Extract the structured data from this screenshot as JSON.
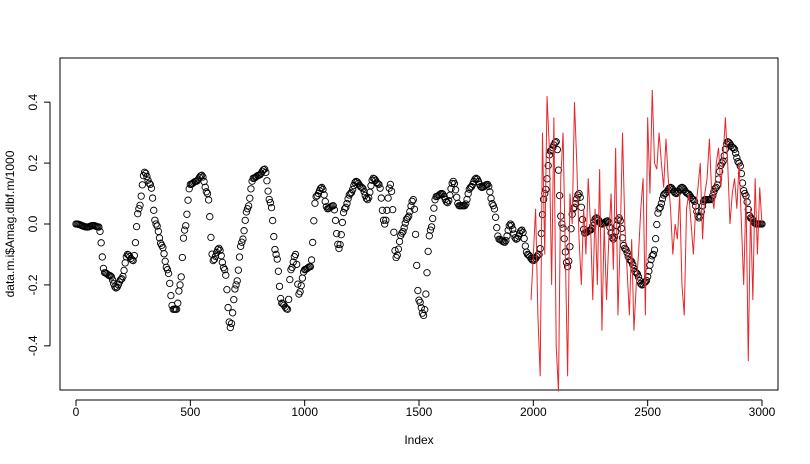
{
  "chart_data": {
    "type": "scatter",
    "xlabel": "Index",
    "ylabel": "data.m.i$Amag.dlbf.m/1000",
    "xlim": [
      -70,
      3070
    ],
    "ylim": [
      -0.545,
      0.545
    ],
    "x_ticks": [
      0,
      500,
      1000,
      1500,
      2000,
      2500,
      3000
    ],
    "y_ticks": [
      -0.4,
      -0.2,
      0.0,
      0.2,
      0.4
    ],
    "x_tick_labels": [
      "0",
      "500",
      "1000",
      "1500",
      "2000",
      "2500",
      "3000"
    ],
    "y_tick_labels": [
      "-0.4",
      "-0.2",
      "0.0",
      "0.2",
      "0.4"
    ],
    "series": [
      {
        "style": "points-open-circle",
        "color": "#000000",
        "x": [
          0,
          50,
          75,
          100,
          125,
          150,
          175,
          200,
          225,
          250,
          275,
          300,
          325,
          350,
          375,
          400,
          425,
          440,
          455,
          475,
          500,
          525,
          550,
          575,
          600,
          625,
          650,
          675,
          700,
          725,
          750,
          775,
          800,
          825,
          850,
          875,
          900,
          925,
          940,
          960,
          975,
          1000,
          1025,
          1050,
          1075,
          1100,
          1125,
          1150,
          1175,
          1200,
          1225,
          1250,
          1275,
          1300,
          1325,
          1350,
          1375,
          1400,
          1425,
          1450,
          1475,
          1500,
          1520,
          1550,
          1575,
          1600,
          1625,
          1650,
          1675,
          1700,
          1725,
          1750,
          1775,
          1800,
          1825,
          1850,
          1875,
          1900,
          1925,
          1950,
          1975,
          2000,
          2025,
          2050,
          2075,
          2100,
          2125,
          2150,
          2175,
          2200,
          2225,
          2250,
          2275,
          2300,
          2325,
          2350,
          2375,
          2400,
          2425,
          2450,
          2475,
          2490,
          2525,
          2550,
          2575,
          2600,
          2625,
          2650,
          2675,
          2700,
          2725,
          2750,
          2775,
          2800,
          2825,
          2850,
          2875,
          2900,
          2925,
          2950,
          2975,
          3000
        ],
        "y": [
          0.0,
          -0.01,
          -0.005,
          -0.01,
          -0.16,
          -0.17,
          -0.21,
          -0.18,
          -0.1,
          -0.12,
          0.05,
          0.17,
          0.13,
          0.0,
          -0.07,
          -0.15,
          -0.28,
          -0.28,
          -0.2,
          -0.02,
          0.13,
          0.14,
          0.16,
          0.1,
          -0.12,
          -0.08,
          -0.15,
          -0.34,
          -0.2,
          -0.06,
          0.05,
          0.15,
          0.16,
          0.18,
          0.07,
          -0.1,
          -0.26,
          -0.28,
          -0.15,
          -0.1,
          -0.23,
          -0.15,
          -0.14,
          0.09,
          0.12,
          0.05,
          0.06,
          -0.08,
          0.05,
          0.1,
          0.14,
          0.12,
          0.08,
          0.15,
          0.13,
          0.0,
          0.13,
          -0.11,
          -0.03,
          0.02,
          0.08,
          -0.25,
          -0.3,
          -0.02,
          0.09,
          0.1,
          0.07,
          0.14,
          0.06,
          0.06,
          0.12,
          0.15,
          0.12,
          0.13,
          0.06,
          -0.05,
          -0.06,
          0.0,
          -0.05,
          -0.02,
          -0.1,
          -0.12,
          -0.1,
          0.1,
          0.24,
          0.27,
          0.0,
          -0.14,
          0.05,
          0.1,
          -0.03,
          -0.02,
          0.02,
          0.0,
          0.01,
          -0.05,
          0.02,
          -0.08,
          -0.12,
          -0.16,
          -0.2,
          -0.19,
          -0.1,
          0.05,
          0.1,
          0.12,
          0.1,
          0.12,
          0.1,
          0.08,
          0.02,
          0.08,
          0.08,
          0.12,
          0.2,
          0.27,
          0.25,
          0.2,
          0.1,
          0.02,
          0.0,
          0.0
        ]
      },
      {
        "style": "line",
        "color": "#e8262b",
        "x": [
          1990,
          2000,
          2010,
          2020,
          2030,
          2040,
          2050,
          2060,
          2070,
          2080,
          2090,
          2100,
          2110,
          2120,
          2130,
          2140,
          2150,
          2160,
          2170,
          2180,
          2190,
          2200,
          2210,
          2220,
          2230,
          2240,
          2250,
          2260,
          2270,
          2280,
          2290,
          2300,
          2310,
          2320,
          2330,
          2340,
          2350,
          2360,
          2370,
          2380,
          2390,
          2400,
          2410,
          2420,
          2430,
          2440,
          2450,
          2460,
          2470,
          2480,
          2490,
          2500,
          2510,
          2520,
          2530,
          2540,
          2550,
          2560,
          2570,
          2580,
          2590,
          2600,
          2610,
          2620,
          2630,
          2640,
          2650,
          2660,
          2670,
          2680,
          2690,
          2700,
          2710,
          2720,
          2730,
          2740,
          2750,
          2760,
          2770,
          2780,
          2790,
          2800,
          2810,
          2820,
          2830,
          2840,
          2850,
          2860,
          2870,
          2880,
          2890,
          2900,
          2910,
          2920,
          2930,
          2940,
          2950,
          2960,
          2970,
          2980,
          2990,
          3000
        ],
        "y": [
          -0.25,
          -0.1,
          0.05,
          -0.3,
          -0.5,
          0.3,
          -0.1,
          0.42,
          0.25,
          -0.2,
          0.35,
          -0.4,
          -0.55,
          0.15,
          0.3,
          -0.1,
          -0.5,
          0.1,
          0.0,
          0.4,
          0.2,
          -0.05,
          -0.2,
          0.05,
          -0.1,
          0.15,
          0.0,
          -0.25,
          0.05,
          -0.2,
          0.18,
          -0.35,
          0.0,
          -0.25,
          -0.05,
          0.1,
          -0.15,
          0.25,
          -0.3,
          -0.05,
          0.3,
          0.0,
          -0.15,
          -0.3,
          -0.05,
          -0.35,
          -0.2,
          -0.1,
          0.05,
          0.15,
          -0.3,
          0.35,
          0.1,
          0.44,
          0.2,
          0.18,
          0.3,
          0.2,
          0.12,
          0.28,
          0.15,
          0.05,
          -0.1,
          0.0,
          -0.05,
          0.1,
          -0.2,
          -0.3,
          0.05,
          0.1,
          0.0,
          -0.1,
          0.05,
          0.12,
          0.2,
          -0.05,
          0.1,
          0.15,
          0.28,
          0.1,
          0.05,
          0.2,
          0.25,
          0.12,
          0.22,
          0.35,
          0.2,
          0.0,
          0.1,
          0.15,
          0.05,
          0.2,
          0.0,
          -0.2,
          0.1,
          -0.45,
          0.05,
          -0.25,
          0.15,
          -0.1,
          0.12,
          0.0
        ]
      }
    ]
  }
}
